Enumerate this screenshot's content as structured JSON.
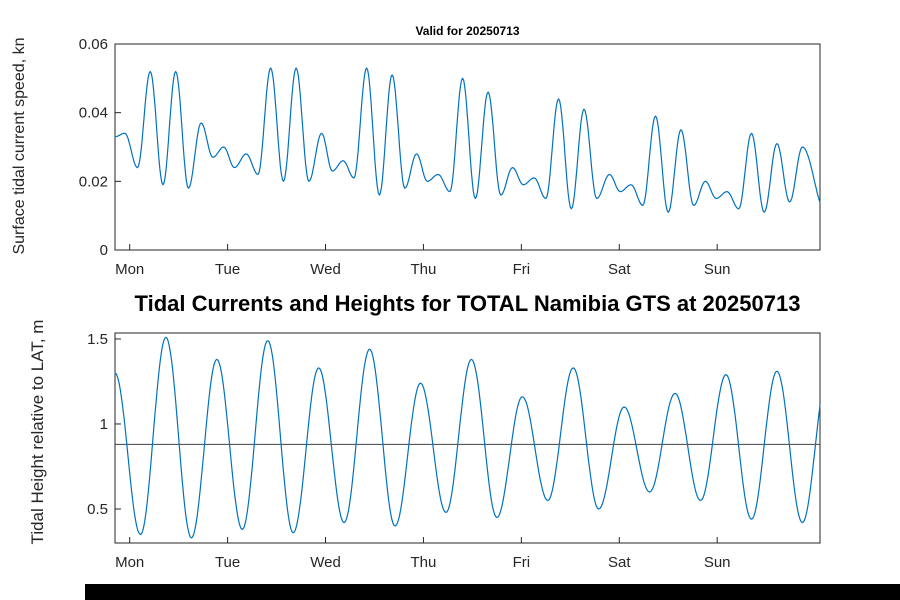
{
  "figure": {
    "background": "#ffffff",
    "axis_color": "#262626",
    "bottom_bar_color": "#000000"
  },
  "chart_data": [
    {
      "id": "surface-current-speed",
      "type": "line",
      "title": "Valid for 20250713",
      "ylabel": "Surface tidal current speed, kn",
      "xlabel": "",
      "line_color": "#0072bd",
      "grid": false,
      "legend": "none",
      "x_domain": [
        -0.15,
        7.05
      ],
      "y_domain": [
        0,
        0.06
      ],
      "x_ticks": [
        {
          "t": 0,
          "label": "Mon"
        },
        {
          "t": 1,
          "label": "Tue"
        },
        {
          "t": 2,
          "label": "Wed"
        },
        {
          "t": 3,
          "label": "Thu"
        },
        {
          "t": 4,
          "label": "Fri"
        },
        {
          "t": 5,
          "label": "Sat"
        },
        {
          "t": 6,
          "label": "Sun"
        }
      ],
      "y_ticks": [
        {
          "v": 0,
          "label": "0"
        },
        {
          "v": 0.02,
          "label": "0.02"
        },
        {
          "v": 0.04,
          "label": "0.04"
        },
        {
          "v": 0.06,
          "label": "0.06"
        }
      ],
      "interpolation": "cosine-between-extrema",
      "extrema": [
        [
          -0.15,
          0.033
        ],
        [
          -0.05,
          0.034
        ],
        [
          0.08,
          0.024
        ],
        [
          0.21,
          0.052
        ],
        [
          0.34,
          0.019
        ],
        [
          0.47,
          0.052
        ],
        [
          0.6,
          0.018
        ],
        [
          0.73,
          0.037
        ],
        [
          0.85,
          0.027
        ],
        [
          0.96,
          0.03
        ],
        [
          1.07,
          0.024
        ],
        [
          1.19,
          0.028
        ],
        [
          1.31,
          0.022
        ],
        [
          1.44,
          0.053
        ],
        [
          1.57,
          0.02
        ],
        [
          1.7,
          0.053
        ],
        [
          1.83,
          0.02
        ],
        [
          1.96,
          0.034
        ],
        [
          2.07,
          0.023
        ],
        [
          2.18,
          0.026
        ],
        [
          2.29,
          0.021
        ],
        [
          2.42,
          0.053
        ],
        [
          2.55,
          0.016
        ],
        [
          2.68,
          0.051
        ],
        [
          2.81,
          0.018
        ],
        [
          2.93,
          0.028
        ],
        [
          3.04,
          0.02
        ],
        [
          3.15,
          0.022
        ],
        [
          3.27,
          0.017
        ],
        [
          3.4,
          0.05
        ],
        [
          3.53,
          0.015
        ],
        [
          3.66,
          0.046
        ],
        [
          3.79,
          0.016
        ],
        [
          3.91,
          0.024
        ],
        [
          4.02,
          0.019
        ],
        [
          4.13,
          0.021
        ],
        [
          4.25,
          0.015
        ],
        [
          4.38,
          0.044
        ],
        [
          4.51,
          0.012
        ],
        [
          4.64,
          0.041
        ],
        [
          4.77,
          0.015
        ],
        [
          4.9,
          0.022
        ],
        [
          5.01,
          0.017
        ],
        [
          5.12,
          0.019
        ],
        [
          5.24,
          0.013
        ],
        [
          5.37,
          0.039
        ],
        [
          5.5,
          0.011
        ],
        [
          5.63,
          0.035
        ],
        [
          5.76,
          0.013
        ],
        [
          5.88,
          0.02
        ],
        [
          5.99,
          0.015
        ],
        [
          6.1,
          0.017
        ],
        [
          6.22,
          0.012
        ],
        [
          6.35,
          0.034
        ],
        [
          6.48,
          0.011
        ],
        [
          6.61,
          0.031
        ],
        [
          6.74,
          0.014
        ],
        [
          6.87,
          0.03
        ],
        [
          7.11,
          0.011
        ]
      ]
    },
    {
      "id": "tidal-height",
      "type": "line",
      "title": "Tidal Currents and Heights for TOTAL Namibia GTS at 20250713",
      "ylabel": "Tidal Height relative to LAT, m",
      "xlabel": "",
      "line_color": "#0072bd",
      "grid": false,
      "legend": "none",
      "x_domain": [
        -0.15,
        7.05
      ],
      "y_domain": [
        0.3,
        1.535
      ],
      "x_ticks": [
        {
          "t": 0,
          "label": "Mon"
        },
        {
          "t": 1,
          "label": "Tue"
        },
        {
          "t": 2,
          "label": "Wed"
        },
        {
          "t": 3,
          "label": "Thu"
        },
        {
          "t": 4,
          "label": "Fri"
        },
        {
          "t": 5,
          "label": "Sat"
        },
        {
          "t": 6,
          "label": "Sun"
        }
      ],
      "y_ticks": [
        {
          "v": 0.5,
          "label": "0.5"
        },
        {
          "v": 1,
          "label": "1"
        },
        {
          "v": 1.5,
          "label": "1.5"
        }
      ],
      "reference_line": {
        "y": 0.88,
        "color": "#404040"
      },
      "interpolation": "cosine-between-extrema",
      "extrema": [
        [
          -0.15,
          1.3
        ],
        [
          0.11,
          0.35
        ],
        [
          0.37,
          1.51
        ],
        [
          0.63,
          0.33
        ],
        [
          0.89,
          1.38
        ],
        [
          1.15,
          0.38
        ],
        [
          1.41,
          1.49
        ],
        [
          1.67,
          0.36
        ],
        [
          1.93,
          1.33
        ],
        [
          2.19,
          0.42
        ],
        [
          2.45,
          1.44
        ],
        [
          2.71,
          0.4
        ],
        [
          2.97,
          1.24
        ],
        [
          3.23,
          0.48
        ],
        [
          3.49,
          1.38
        ],
        [
          3.75,
          0.45
        ],
        [
          4.01,
          1.16
        ],
        [
          4.27,
          0.55
        ],
        [
          4.53,
          1.33
        ],
        [
          4.79,
          0.5
        ],
        [
          5.05,
          1.1
        ],
        [
          5.31,
          0.6
        ],
        [
          5.57,
          1.18
        ],
        [
          5.83,
          0.55
        ],
        [
          6.09,
          1.29
        ],
        [
          6.35,
          0.44
        ],
        [
          6.61,
          1.31
        ],
        [
          6.87,
          0.42
        ],
        [
          7.13,
          1.3
        ]
      ]
    }
  ]
}
